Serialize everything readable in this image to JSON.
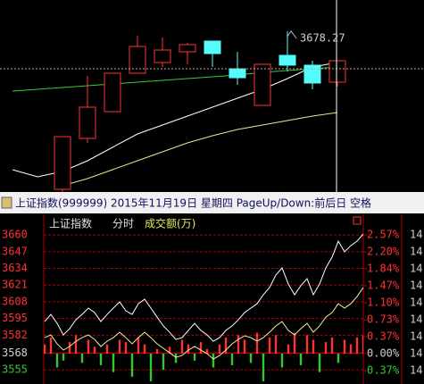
{
  "top_chart": {
    "type": "candlestick",
    "ylim": [
      3318,
      3748
    ],
    "up_color": "#ff3232",
    "down_color": "#54fcfc",
    "candles": [
      null,
      null,
      {
        "open": 3324,
        "close": 3442,
        "high": 3442,
        "low": 3318
      },
      {
        "open": 3438,
        "close": 3508,
        "high": 3578,
        "low": 3428
      },
      {
        "open": 3498,
        "close": 3584,
        "high": 3584,
        "low": 3498
      },
      {
        "open": 3584,
        "close": 3644,
        "high": 3668,
        "low": 3584
      },
      {
        "open": 3608,
        "close": 3636,
        "high": 3664,
        "low": 3598
      },
      {
        "open": 3632,
        "close": 3648,
        "high": 3652,
        "low": 3604
      },
      {
        "open": 3656,
        "close": 3628,
        "high": 3656,
        "low": 3598
      },
      {
        "open": 3594,
        "close": 3574,
        "high": 3632,
        "low": 3558
      },
      {
        "open": 3512,
        "close": 3604,
        "high": 3604,
        "low": 3512
      },
      {
        "open": 3624,
        "close": 3602,
        "high": 3678.27,
        "low": 3588
      },
      {
        "open": 3602,
        "close": 3562,
        "high": 3612,
        "low": 3548
      },
      {
        "open": 3564,
        "close": 3612,
        "high": 3612,
        "low": 3554
      }
    ],
    "moving_averages": [
      {
        "color": "#3cc83c",
        "values": [
          3544,
          3548,
          3552,
          3556,
          3560,
          3564,
          3568,
          3572,
          3576,
          3580,
          3586,
          3590,
          3594,
          3598
        ]
      },
      {
        "color": "#ffffff",
        "values": [
          3368,
          3352,
          3364,
          3388,
          3418,
          3448,
          3468,
          3488,
          3508,
          3528,
          3548,
          3572,
          3598,
          3608
        ]
      },
      {
        "color": "#e8e890",
        "values": [
          null,
          null,
          3332,
          3348,
          3368,
          3388,
          3408,
          3428,
          3444,
          3458,
          3468,
          3478,
          3488,
          3496
        ]
      }
    ],
    "crosshair": {
      "value": 3594,
      "slot": 13
    }
  },
  "title_bar": {
    "text": "上证指数(999999)  2015年11月19日  星期四  PageUp/Down:前后日  空格"
  },
  "intraday_chart": {
    "type": "line",
    "header": {
      "name": "上证指数",
      "mode": "分时",
      "indicator": "成交额(万)"
    },
    "ylim": [
      3544,
      3674
    ],
    "yticks": [
      3660,
      3647,
      3634,
      3621,
      3608,
      3595,
      3582,
      3568,
      3555
    ],
    "y2lim": [
      -0.657,
      2.957
    ],
    "y2ticks": [
      {
        "value": 2.57,
        "label": "2.57%"
      },
      {
        "value": 2.2,
        "label": "2.20%"
      },
      {
        "value": 1.84,
        "label": "1.84%"
      },
      {
        "value": 1.47,
        "label": "1.47%"
      },
      {
        "value": 1.1,
        "label": "1.10%"
      },
      {
        "value": 0.73,
        "label": "0.73%"
      },
      {
        "value": 0.37,
        "label": "0.37%"
      },
      {
        "value": 0,
        "label": "0.00%"
      },
      {
        "value": -0.37,
        "label": "0.37%"
      }
    ],
    "right_labels": [
      "14",
      "14",
      "14",
      "14",
      "14",
      "14",
      "14",
      "14",
      "14"
    ],
    "up_color": "#ff3232",
    "down_color": "#32c832",
    "grid_color": "#b00000",
    "series": [
      {
        "color": "#ffffff",
        "values": [
          3592.6,
          3598.2,
          3591.2,
          3582.2,
          3587.1,
          3594.0,
          3598.2,
          3603.1,
          3599.6,
          3592.6,
          3598.2,
          3603.1,
          3607.9,
          3601.0,
          3598.2,
          3606.5,
          3610.0,
          3603.1,
          3596.1,
          3589.2,
          3584.3,
          3578.7,
          3580.1,
          3585.7,
          3591.2,
          3585.7,
          3582.2,
          3577.3,
          3580.1,
          3585.7,
          3589.2,
          3594.0,
          3599.6,
          3603.1,
          3606.5,
          3613.5,
          3619.1,
          3628.8,
          3634.4,
          3621.8,
          3613.5,
          3620.5,
          3626.0,
          3613.5,
          3621.8,
          3634.4,
          3642.7,
          3655.2,
          3646.9,
          3651.7,
          3655.2,
          3660.8
        ]
      },
      {
        "color": "#f0f0a0",
        "values": [
          3580.1,
          3582.2,
          3575.3,
          3570.4,
          3573.2,
          3577.3,
          3580.1,
          3582.2,
          3578.7,
          3573.2,
          3577.3,
          3580.1,
          3584.3,
          3580.1,
          3575.3,
          3580.1,
          3584.3,
          3580.1,
          3575.3,
          3571.8,
          3568.3,
          3564.8,
          3566.2,
          3570.4,
          3573.2,
          3570.4,
          3567.6,
          3563.4,
          3566.2,
          3570.4,
          3575.3,
          3578.7,
          3581.5,
          3580.1,
          3577.3,
          3580.1,
          3584.3,
          3589.2,
          3592.6,
          3585.7,
          3582.2,
          3587.1,
          3591.2,
          3584.3,
          3589.2,
          3596.1,
          3599.6,
          3606.5,
          3603.1,
          3606.5,
          3612.1,
          3619.1
        ]
      }
    ],
    "bars": {
      "axis": "y2",
      "values": [
        0.2,
        0.35,
        -0.3,
        -0.15,
        0.25,
        0.4,
        -0.2,
        0.3,
        0.15,
        -0.25,
        0.2,
        -0.4,
        0.3,
        0.25,
        -0.5,
        0.35,
        0.2,
        -0.6,
        0.1,
        -0.35,
        0.15,
        -0.2,
        0.3,
        0.2,
        -0.15,
        0.25,
        0.1,
        -0.3,
        0.2,
        0.35,
        -0.25,
        0.4,
        0.3,
        -0.2,
        0.45,
        -0.6,
        0.35,
        0.4,
        -0.3,
        0.2,
        0.45,
        -0.25,
        0.4,
        0.3,
        -0.4,
        0.25,
        0.35,
        -0.2,
        0.3,
        0.2,
        0.35,
        0.4
      ]
    }
  }
}
